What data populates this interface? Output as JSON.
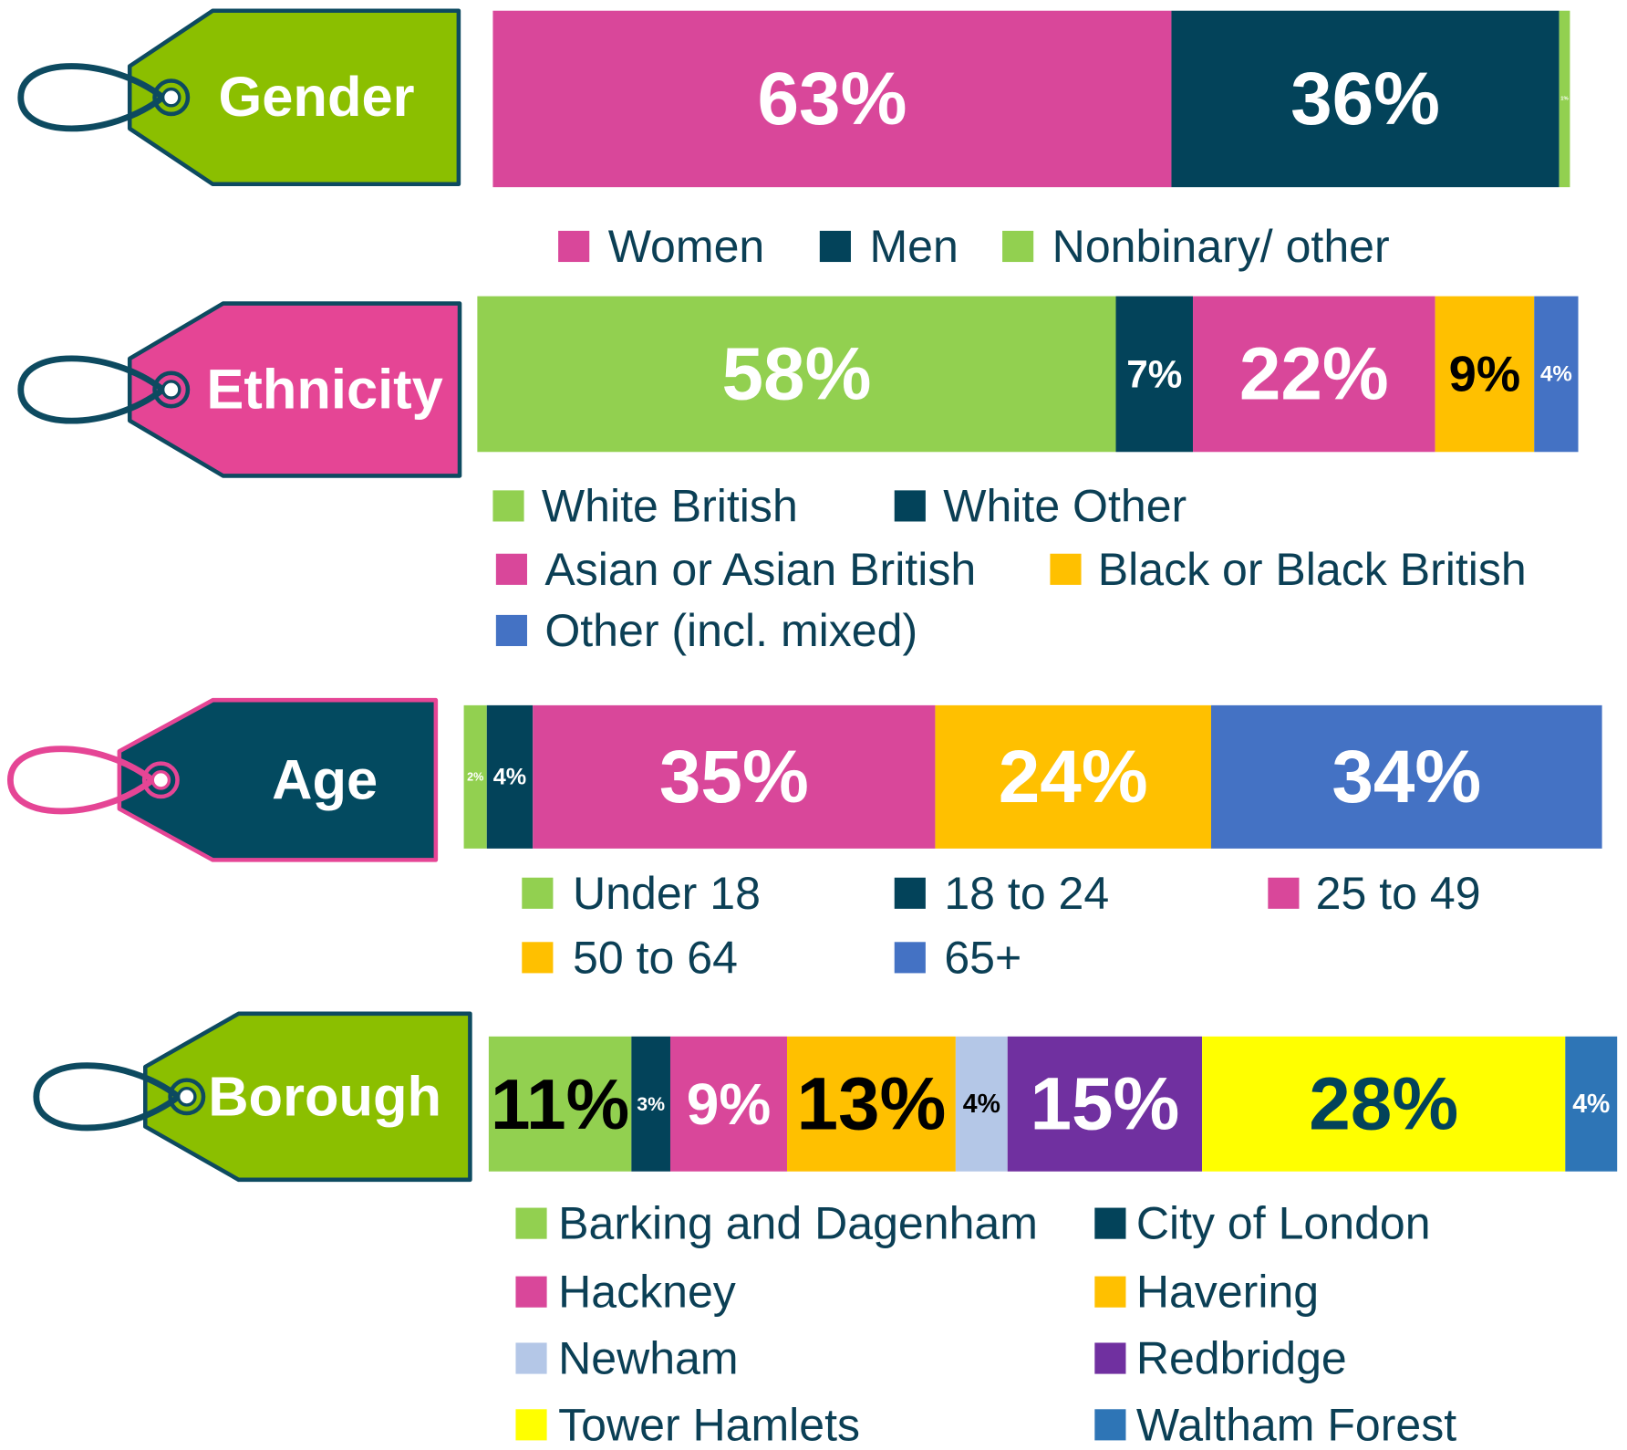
{
  "chart_data": [
    {
      "type": "bar",
      "stacked": true,
      "title": "Gender",
      "xlim": [
        0,
        100
      ],
      "series": [
        {
          "name": "Women",
          "color": "#d9479a",
          "values": [
            63
          ],
          "value_labels": [
            "63%"
          ],
          "label_color": "#ffffff"
        },
        {
          "name": "Men",
          "color": "#03435a",
          "values": [
            36
          ],
          "value_labels": [
            "36%"
          ],
          "label_color": "#ffffff"
        },
        {
          "name": "Nonbinary/ other",
          "color": "#92d050",
          "values": [
            1
          ],
          "value_labels": [
            "1%"
          ],
          "label_color": "#ffffff"
        }
      ]
    },
    {
      "type": "bar",
      "stacked": true,
      "title": "Ethnicity",
      "xlim": [
        0,
        100
      ],
      "series": [
        {
          "name": "White British",
          "color": "#92d050",
          "values": [
            58
          ],
          "value_labels": [
            "58%"
          ],
          "label_color": "#ffffff"
        },
        {
          "name": "White Other",
          "color": "#03435a",
          "values": [
            7
          ],
          "value_labels": [
            "7%"
          ],
          "label_color": "#ffffff"
        },
        {
          "name": "Asian or Asian British",
          "color": "#d9479a",
          "values": [
            22
          ],
          "value_labels": [
            "22%"
          ],
          "label_color": "#ffffff"
        },
        {
          "name": "Black or Black British",
          "color": "#ffc000",
          "values": [
            9
          ],
          "value_labels": [
            "9%"
          ],
          "label_color": "#000000"
        },
        {
          "name": "Other (incl. mixed)",
          "color": "#4472c4",
          "values": [
            4
          ],
          "value_labels": [
            "4%"
          ],
          "label_color": "#ffffff"
        }
      ]
    },
    {
      "type": "bar",
      "stacked": true,
      "title": "Age",
      "xlim": [
        0,
        100
      ],
      "series": [
        {
          "name": "Under 18",
          "color": "#92d050",
          "values": [
            2
          ],
          "value_labels": [
            "2%"
          ],
          "label_color": "#ffffff"
        },
        {
          "name": "18 to 24",
          "color": "#03435a",
          "values": [
            4
          ],
          "value_labels": [
            "4%"
          ],
          "label_color": "#ffffff"
        },
        {
          "name": "25 to 49",
          "color": "#d9479a",
          "values": [
            35
          ],
          "value_labels": [
            "35%"
          ],
          "label_color": "#ffffff"
        },
        {
          "name": "50 to 64",
          "color": "#ffc000",
          "values": [
            24
          ],
          "value_labels": [
            "24%"
          ],
          "label_color": "#ffffff"
        },
        {
          "name": "65+",
          "color": "#4472c4",
          "values": [
            34
          ],
          "value_labels": [
            "34%"
          ],
          "label_color": "#ffffff"
        }
      ]
    },
    {
      "type": "bar",
      "stacked": true,
      "title": "Borough",
      "xlim": [
        0,
        100
      ],
      "series": [
        {
          "name": "Barking and Dagenham",
          "color": "#92d050",
          "values": [
            11
          ],
          "value_labels": [
            "11%"
          ],
          "label_color": "#000000"
        },
        {
          "name": "City of London",
          "color": "#03435a",
          "values": [
            3
          ],
          "value_labels": [
            "3%"
          ],
          "label_color": "#ffffff"
        },
        {
          "name": "Hackney",
          "color": "#d9479a",
          "values": [
            9
          ],
          "value_labels": [
            "9%"
          ],
          "label_color": "#ffffff"
        },
        {
          "name": "Havering",
          "color": "#ffc000",
          "values": [
            13
          ],
          "value_labels": [
            "13%"
          ],
          "label_color": "#000000"
        },
        {
          "name": "Newham",
          "color": "#b4c7e7",
          "values": [
            4
          ],
          "value_labels": [
            "4%"
          ],
          "label_color": "#000000"
        },
        {
          "name": "Redbridge",
          "color": "#7030a0",
          "values": [
            15
          ],
          "value_labels": [
            "15%"
          ],
          "label_color": "#ffffff"
        },
        {
          "name": "Tower Hamlets",
          "color": "#ffff00",
          "values": [
            28
          ],
          "value_labels": [
            "28%"
          ],
          "label_color": "#03435a"
        },
        {
          "name": "Waltham Forest",
          "color": "#2e75b6",
          "values": [
            4
          ],
          "value_labels": [
            "4%"
          ],
          "label_color": "#ffffff"
        }
      ]
    }
  ]
}
